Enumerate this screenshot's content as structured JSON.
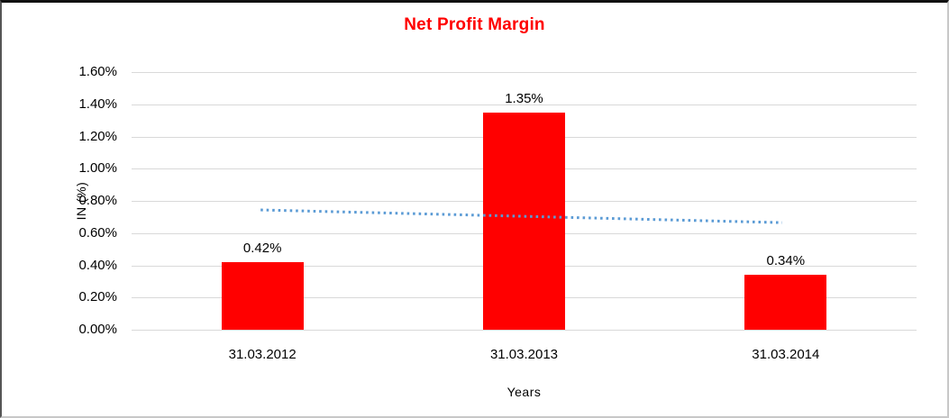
{
  "chart_data": {
    "type": "bar",
    "title": "Net Profit Margin",
    "title_color": "#FF0000",
    "categories": [
      "31.03.2012",
      "31.03.2013",
      "31.03.2014"
    ],
    "series": [
      {
        "name": "Net Profit Margin",
        "values": [
          0.42,
          1.35,
          0.34
        ],
        "data_labels": [
          "0.42%",
          "1.35%",
          "0.34%"
        ],
        "color": "#FF0000"
      }
    ],
    "xlabel": "Years",
    "ylabel": "IN (%)",
    "ylim": [
      0,
      1.6
    ],
    "ytick_interval": 0.2,
    "ytick_labels": [
      "0.00%",
      "0.20%",
      "0.40%",
      "0.60%",
      "0.80%",
      "1.00%",
      "1.20%",
      "1.40%",
      "1.60%"
    ],
    "grid": true,
    "gridline_color": "#D9D9D9",
    "legend": "none",
    "trendline": {
      "style": "dotted",
      "color": "#5B9BD5",
      "start_value": 0.744,
      "end_value": 0.665
    }
  }
}
